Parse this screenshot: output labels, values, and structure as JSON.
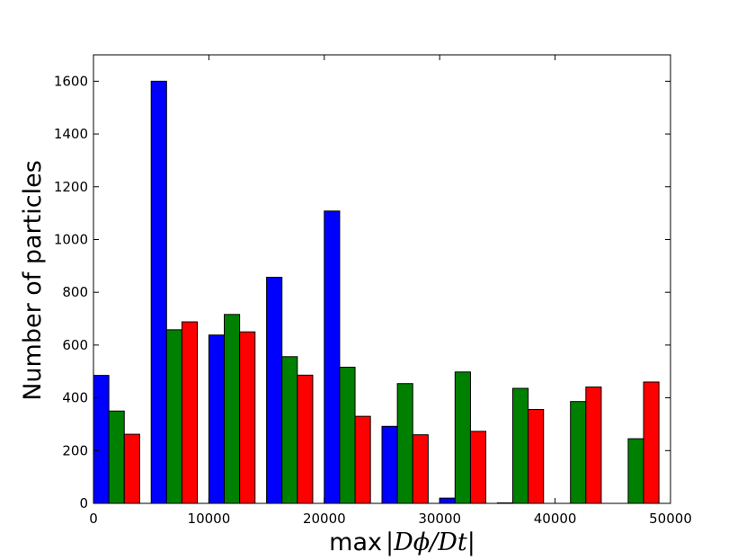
{
  "chart_data": {
    "type": "bar",
    "title": "",
    "xlabel": "max",
    "xlabel_math": "|Dϕ/Dt|",
    "ylabel": "Number of particles",
    "xlim": [
      0,
      50000
    ],
    "ylim": [
      0,
      1700
    ],
    "xticks": [
      0,
      10000,
      20000,
      30000,
      40000,
      50000
    ],
    "yticks": [
      0,
      200,
      400,
      600,
      800,
      1000,
      1200,
      1400,
      1600
    ],
    "grid": false,
    "legend": "none",
    "bin_width": 5000,
    "bin_starts": [
      0,
      5000,
      10000,
      15000,
      20000,
      25000,
      30000,
      35000,
      40000,
      45000
    ],
    "series": [
      {
        "color": "#0000ff",
        "values": [
          485,
          1600,
          638,
          857,
          1108,
          292,
          20,
          2,
          0,
          0
        ]
      },
      {
        "color": "#008000",
        "values": [
          350,
          658,
          716,
          556,
          516,
          454,
          498,
          436,
          386,
          245
        ]
      },
      {
        "color": "#ff0000",
        "values": [
          262,
          688,
          650,
          486,
          330,
          260,
          273,
          356,
          441,
          460
        ]
      }
    ]
  }
}
